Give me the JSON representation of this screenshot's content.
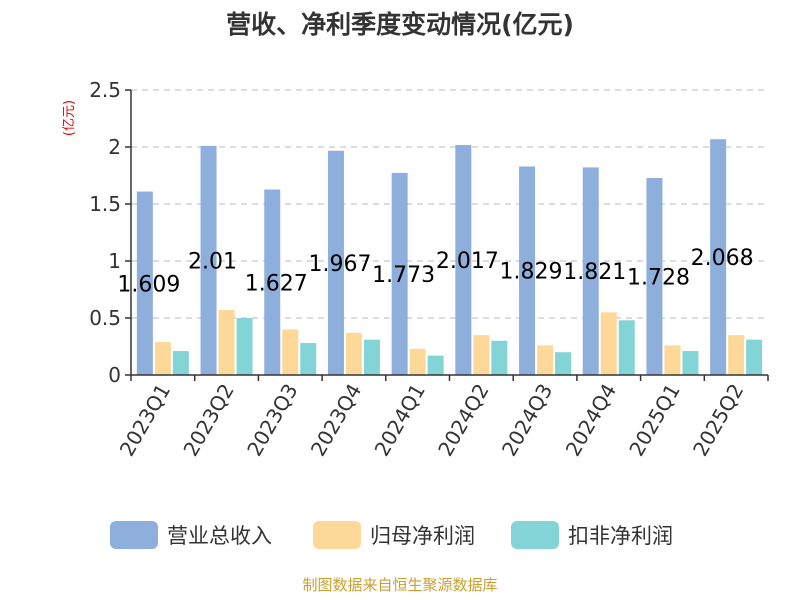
{
  "chart_data": {
    "type": "bar",
    "title": "营收、净利季度变动情况(亿元)",
    "unit_label": "(亿元)",
    "categories": [
      "2023Q1",
      "2023Q2",
      "2023Q3",
      "2023Q4",
      "2024Q1",
      "2024Q2",
      "2024Q3",
      "2024Q4",
      "2025Q1",
      "2025Q2"
    ],
    "series": [
      {
        "name": "营业总收入",
        "color": "#8eaedc",
        "values": [
          1.609,
          2.01,
          1.627,
          1.967,
          1.773,
          2.017,
          1.829,
          1.821,
          1.728,
          2.068
        ]
      },
      {
        "name": "归母净利润",
        "color": "#fdd898",
        "values": [
          0.29,
          0.57,
          0.4,
          0.37,
          0.23,
          0.35,
          0.26,
          0.55,
          0.26,
          0.35
        ]
      },
      {
        "name": "扣非净利润",
        "color": "#83d4d6",
        "values": [
          0.21,
          0.5,
          0.28,
          0.31,
          0.17,
          0.3,
          0.2,
          0.48,
          0.21,
          0.31
        ]
      }
    ],
    "data_labels": [
      "1.609",
      "2.01",
      "1.627",
      "1.967",
      "1.773",
      "2.017",
      "1.829",
      "1.821",
      "1.728",
      "2.068"
    ],
    "ylim": [
      0,
      2.5
    ],
    "yticks": [
      "0",
      "0.5",
      "1",
      "1.5",
      "2",
      "2.5"
    ],
    "grid": true,
    "legend_position": "bottom"
  },
  "footer": {
    "source": "制图数据来自恒生聚源数据库"
  }
}
